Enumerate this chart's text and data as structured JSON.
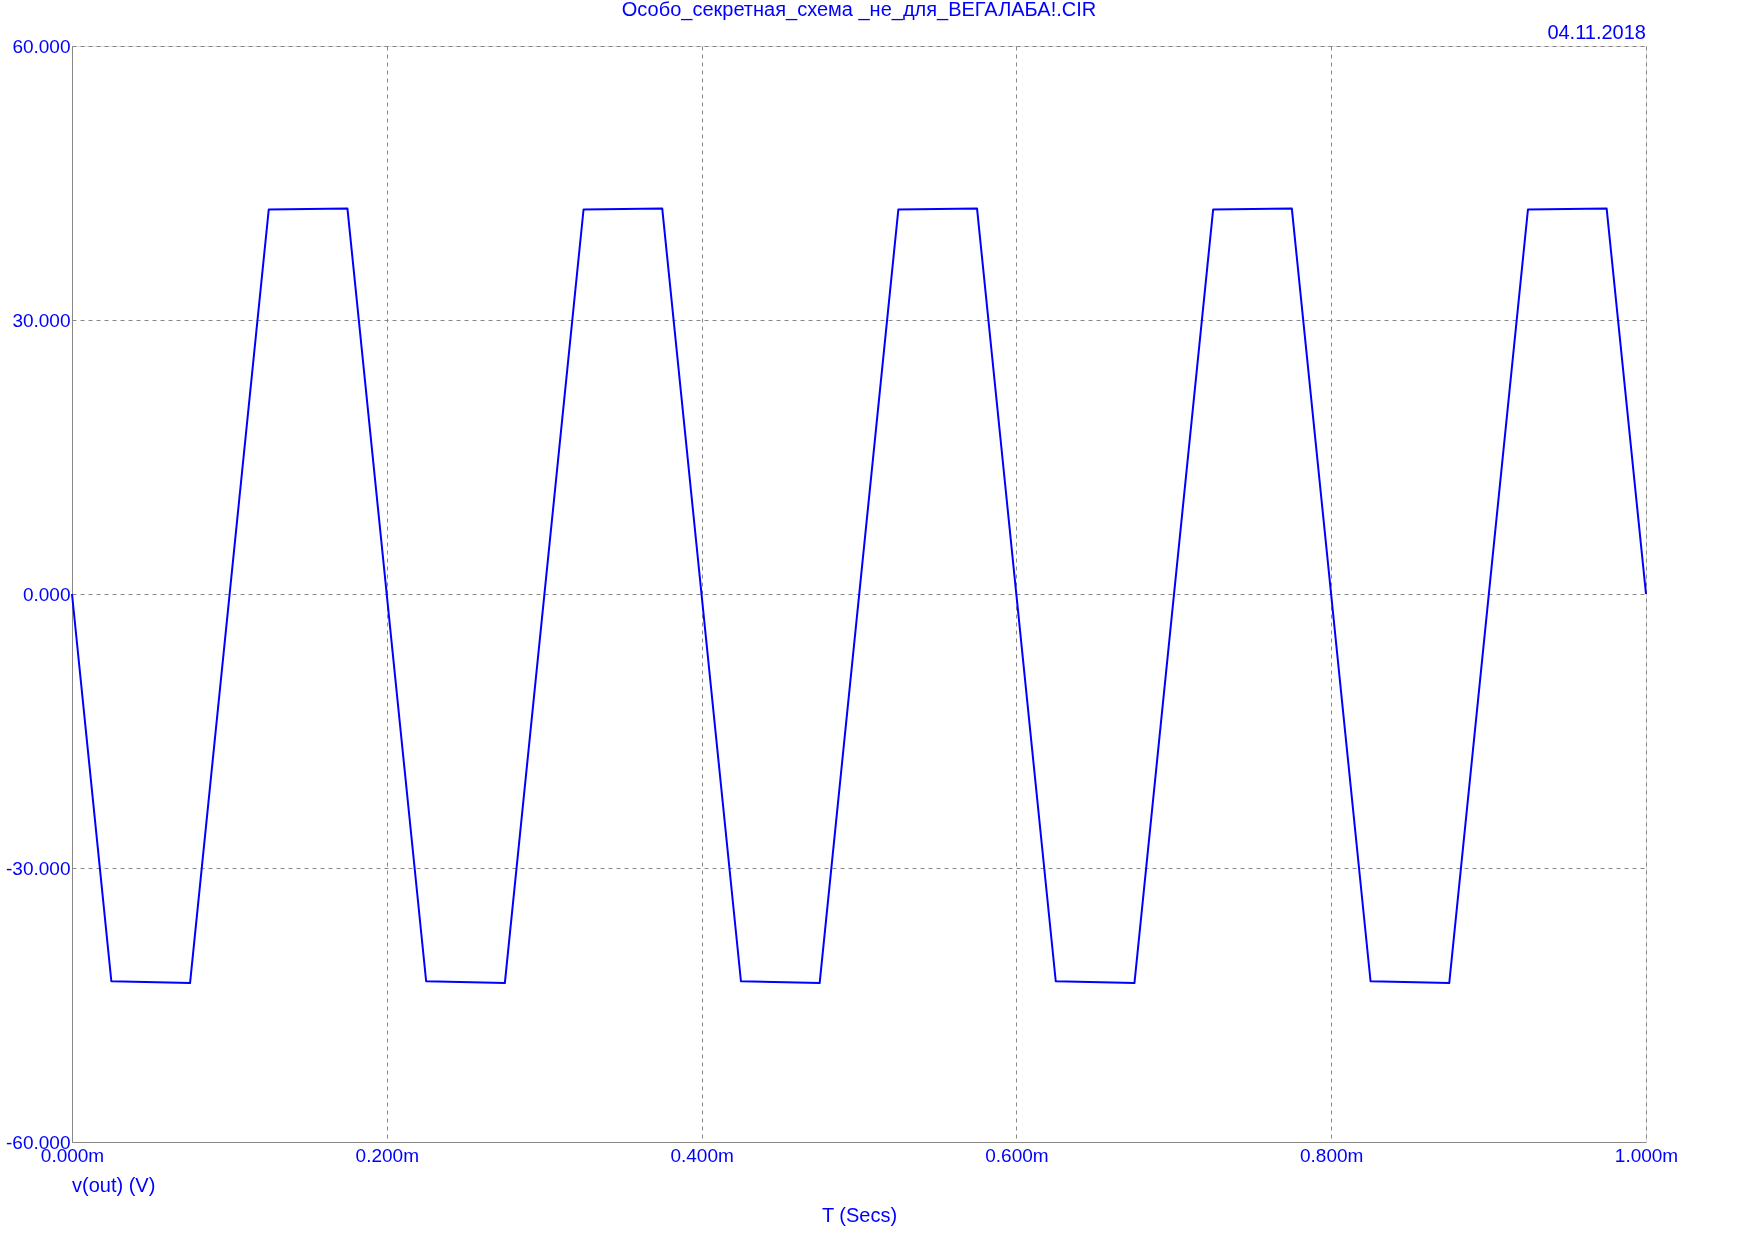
{
  "chart_data": {
    "type": "line",
    "title": "Особо_секретная_схема _не_для_ВЕГАЛАБА!.CIR",
    "xlabel": "T (Secs)",
    "annotations": [
      "04.11.2018"
    ],
    "x": [
      0,
      0.025,
      0.075,
      0.125,
      0.175,
      0.225,
      0.275,
      0.325,
      0.375,
      0.425,
      0.475,
      0.525,
      0.575,
      0.625,
      0.675,
      0.725,
      0.775,
      0.825,
      0.875,
      0.925,
      0.975,
      1.0
    ],
    "series": [
      {
        "name": "v(out) (V)",
        "color": "#0000ff",
        "values": [
          0,
          -42.4,
          -42.6,
          42.1,
          42.2,
          -42.4,
          -42.6,
          42.1,
          42.2,
          -42.4,
          -42.6,
          42.1,
          42.2,
          -42.4,
          -42.6,
          42.1,
          42.2,
          -42.4,
          -42.6,
          42.1,
          42.2,
          0
        ]
      }
    ],
    "xlim": [
      0,
      1.0
    ],
    "xticks": [
      {
        "value": 0,
        "label": "0.000m"
      },
      {
        "value": 0.2,
        "label": "0.200m"
      },
      {
        "value": 0.4,
        "label": "0.400m"
      },
      {
        "value": 0.6,
        "label": "0.600m"
      },
      {
        "value": 0.8,
        "label": "0.800m"
      },
      {
        "value": 1.0,
        "label": "1.000m"
      }
    ],
    "ylim": [
      -60,
      60
    ],
    "yticks": [
      {
        "value": -60,
        "label": "-60.000"
      },
      {
        "value": -30,
        "label": "-30.000"
      },
      {
        "value": 0,
        "label": "0.000"
      },
      {
        "value": 30,
        "label": "30.000"
      },
      {
        "value": 60,
        "label": "60.000"
      }
    ],
    "grid": true,
    "line_style": "solid",
    "marker": "none"
  }
}
